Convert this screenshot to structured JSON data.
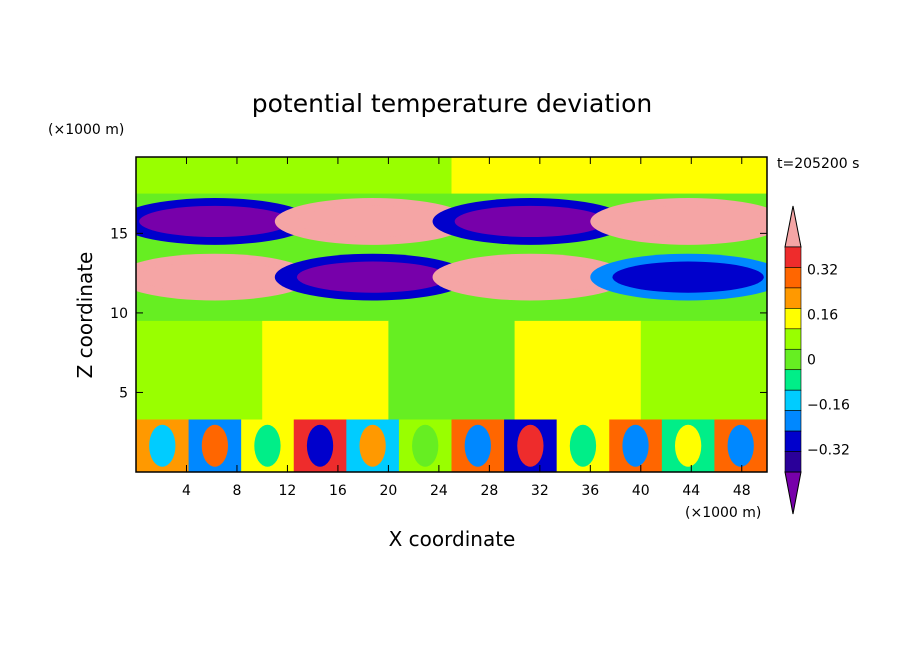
{
  "chart_data": {
    "type": "heatmap",
    "title": "potential temperature deviation",
    "xlabel": "X coordinate",
    "ylabel": "Z coordinate",
    "x_unit": "(×1000 m)",
    "y_unit": "(×1000 m)",
    "time_label": "t=205200 s",
    "xlim": [
      0,
      50
    ],
    "ylim": [
      0,
      19.8
    ],
    "x_ticks": [
      "4",
      "8",
      "12",
      "16",
      "20",
      "24",
      "28",
      "32",
      "36",
      "40",
      "44",
      "48"
    ],
    "y_ticks": [
      "5",
      "10",
      "15"
    ],
    "x_tick_values": [
      4,
      8,
      12,
      16,
      20,
      24,
      28,
      32,
      36,
      40,
      44,
      48
    ],
    "y_tick_values": [
      5,
      10,
      15
    ],
    "colorbar": {
      "levels": [
        -0.4,
        -0.32,
        -0.24,
        -0.16,
        -0.08,
        0,
        0.08,
        0.16,
        0.24,
        0.32,
        0.4
      ],
      "labels": [
        "0.32",
        "0.16",
        "0",
        "−0.16",
        "−0.32"
      ],
      "label_values": [
        0.32,
        0.16,
        0,
        -0.16,
        -0.32
      ],
      "colors": [
        "#f5a5a5",
        "#ee2c2c",
        "#ff6600",
        "#ff9900",
        "#ffff00",
        "#99ff00",
        "#66ee22",
        "#00ee88",
        "#00ccff",
        "#0088ff",
        "#0000cc",
        "#2a0099",
        "#7700aa"
      ],
      "extend": "both"
    },
    "bands": [
      {
        "zmin": 0,
        "zmax": 3.3,
        "pattern": "turbulent",
        "values": [
          0.2,
          -0.3,
          0.1,
          0.35,
          -0.2,
          0.05,
          0.3,
          -0.35,
          0.15,
          0.25,
          -0.1,
          0.3
        ]
      },
      {
        "zmin": 3.3,
        "zmax": 9.5,
        "pattern": "mixed",
        "values": [
          0.02,
          0.08,
          -0.04,
          0.1,
          0.05
        ]
      },
      {
        "zmin": 10.5,
        "zmax": 14,
        "pattern": "layer",
        "values": [
          0.4,
          -0.35,
          0.4,
          -0.3
        ]
      },
      {
        "zmin": 14,
        "zmax": 17.5,
        "pattern": "layer",
        "values": [
          -0.4,
          0.4,
          -0.35,
          0.4
        ]
      },
      {
        "zmin": 17.5,
        "zmax": 19.8,
        "pattern": "calm",
        "values": [
          0.05,
          0.1
        ]
      }
    ]
  }
}
